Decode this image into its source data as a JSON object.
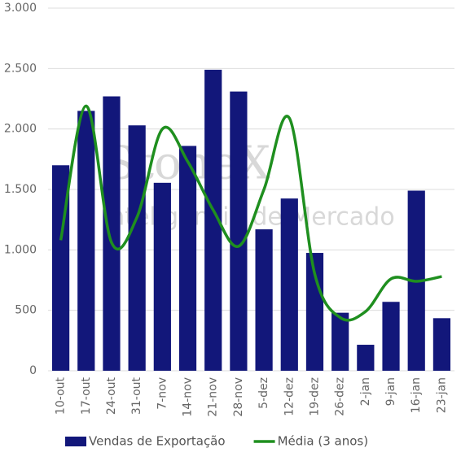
{
  "chart_data": {
    "type": "bar-line",
    "watermark": [
      "StoneX",
      "Inteligência de Mercado"
    ],
    "categories": [
      "10-out",
      "17-out",
      "24-out",
      "31-out",
      "7-nov",
      "14-nov",
      "21-nov",
      "28-nov",
      "5-dez",
      "12-dez",
      "19-dez",
      "26-dez",
      "2-jan",
      "9-jan",
      "16-jan",
      "23-jan"
    ],
    "series": [
      {
        "name": "Vendas de Exportação",
        "type": "bar",
        "color": "#12177a",
        "values": [
          1700,
          2150,
          2270,
          2030,
          1555,
          1860,
          2490,
          2310,
          1170,
          1425,
          975,
          480,
          215,
          570,
          1490,
          435
        ]
      },
      {
        "name": "Média (3 anos)",
        "type": "line",
        "color": "#1f8f1f",
        "values": [
          1080,
          2190,
          1060,
          1270,
          2000,
          1730,
          1330,
          1030,
          1500,
          2090,
          800,
          440,
          490,
          760,
          740,
          780
        ]
      }
    ],
    "ylim": [
      0,
      3000
    ],
    "yticks": [
      0,
      500,
      {
        "value": 1000,
        "label": "1.000"
      },
      {
        "value": 1500,
        "label": "1.500"
      },
      {
        "value": 2000,
        "label": "2.000"
      },
      {
        "value": 2500,
        "label": "2.500"
      },
      {
        "value": 3000,
        "label": "3.000"
      }
    ],
    "grid": true,
    "legend": "bottom"
  }
}
